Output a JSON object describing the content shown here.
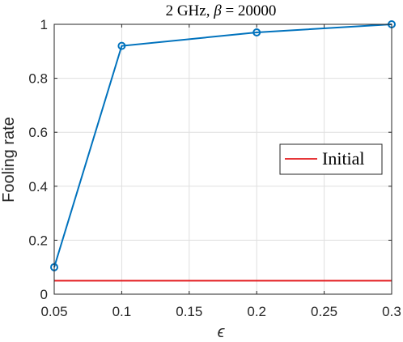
{
  "chart_data": {
    "type": "line",
    "title_prefix": "2 GHz, ",
    "title_symbol": "β",
    "title_suffix": " = 20000",
    "xlabel": "ϵ",
    "ylabel": "Fooling rate",
    "xlim": [
      0.05,
      0.3
    ],
    "ylim": [
      0,
      1
    ],
    "xticks": [
      0.05,
      0.1,
      0.15,
      0.2,
      0.25,
      0.3
    ],
    "xtick_labels": [
      "0.05",
      "0.1",
      "0.15",
      "0.2",
      "0.25",
      "0.3"
    ],
    "yticks": [
      0,
      0.2,
      0.4,
      0.6,
      0.8,
      1
    ],
    "ytick_labels": [
      "0",
      "0.2",
      "0.4",
      "0.6",
      "0.8",
      "1"
    ],
    "grid": true,
    "legend_position": "right",
    "series": [
      {
        "x": [
          0.05,
          0.1,
          0.2,
          0.3
        ],
        "y": [
          0.1,
          0.92,
          0.97,
          1.0
        ],
        "color": "#0072BD",
        "marker": "circle"
      },
      {
        "name": "Initial",
        "x": [
          0.05,
          0.3
        ],
        "y": [
          0.05,
          0.05
        ],
        "color": "#E3191C",
        "marker": "none"
      }
    ]
  }
}
